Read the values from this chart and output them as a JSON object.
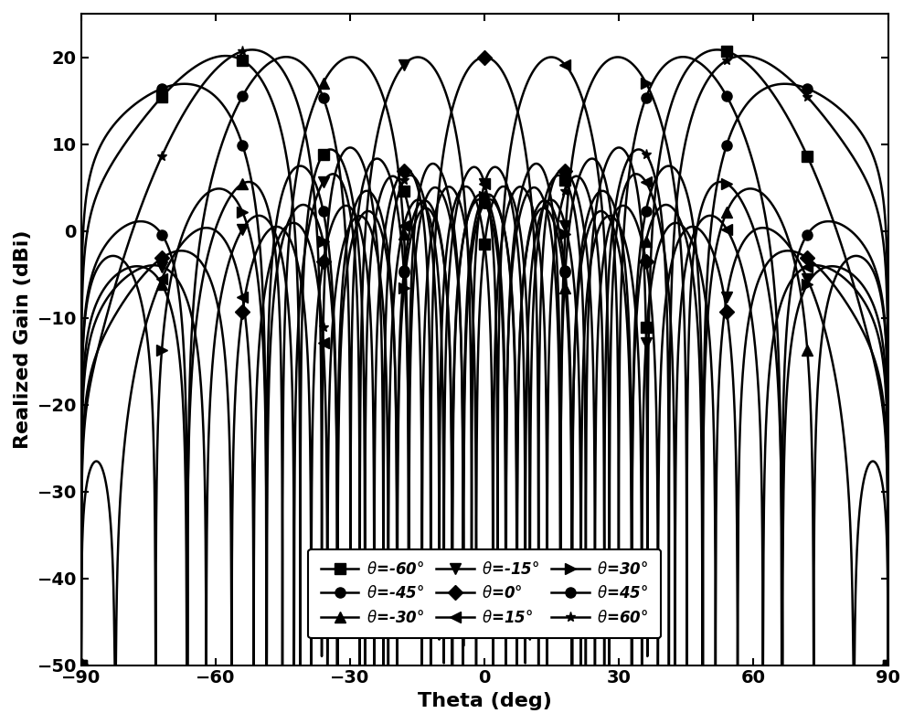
{
  "title": "",
  "xlabel": "Theta (deg)",
  "ylabel": "Realized Gain (dBi)",
  "xlim": [
    -90,
    90
  ],
  "ylim": [
    -50,
    25
  ],
  "xticks": [
    -90,
    -60,
    -30,
    0,
    30,
    60,
    90
  ],
  "yticks": [
    -50,
    -40,
    -30,
    -20,
    -10,
    0,
    10,
    20
  ],
  "steering_angles": [
    -60,
    -45,
    -30,
    -15,
    0,
    15,
    30,
    45,
    60
  ],
  "markers": [
    "s",
    "o",
    "^",
    "v",
    "D",
    "<",
    ">",
    "o",
    "*"
  ],
  "labels": [
    "$\\theta$=-60°",
    "$\\theta$=-45°",
    "$\\theta$=-30°",
    "$\\theta$=-15°",
    "$\\theta$=0°",
    "$\\theta$=15°",
    "$\\theta$=30°",
    "$\\theta$=45°",
    "$\\theta$=60°"
  ],
  "N_elements": 8,
  "d_over_lambda": 0.6,
  "peak_gain_dB": 20.0,
  "background_color": "#ffffff",
  "line_color": "#000000",
  "marker_size": 8,
  "linewidth": 1.8,
  "legend_fontsize": 12,
  "axis_fontsize": 16,
  "tick_fontsize": 14,
  "clip_min": -50,
  "n_markers_per_curve": 11
}
